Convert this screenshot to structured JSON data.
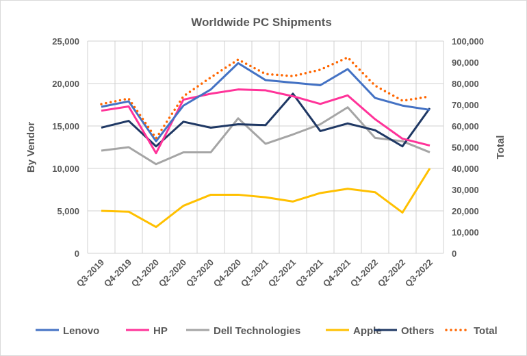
{
  "chart_data": {
    "type": "line",
    "title": "Worldwide PC Shipments",
    "ylabel": "By Vendor",
    "y2label": "Total",
    "xlabel": "",
    "categories": [
      "Q3-2019",
      "Q4-2019",
      "Q1-2020",
      "Q2-2020",
      "Q3-2020",
      "Q4-2020",
      "Q1-2021",
      "Q2-2021",
      "Q3-2021",
      "Q4-2021",
      "Q1-2022",
      "Q2-2022",
      "Q3-2022"
    ],
    "ylim": [
      0,
      25000
    ],
    "yticks": [
      "0",
      "5,000",
      "10,000",
      "15,000",
      "20,000",
      "25,000"
    ],
    "y2lim": [
      0,
      100000
    ],
    "y2ticks": [
      "0",
      "10,000",
      "20,000",
      "30,000",
      "40,000",
      "50,000",
      "60,000",
      "70,000",
      "80,000",
      "90,000",
      "100,000"
    ],
    "grid": true,
    "legend_position": "bottom",
    "series": [
      {
        "name": "Lenovo",
        "axis": "left",
        "color": "#4472C4",
        "style": "solid",
        "values": [
          17260,
          17900,
          13200,
          17400,
          19300,
          22400,
          20400,
          20100,
          19800,
          21700,
          18300,
          17400,
          16900
        ]
      },
      {
        "name": "HP",
        "axis": "left",
        "color": "#FF3399",
        "style": "solid",
        "values": [
          16800,
          17300,
          11800,
          18100,
          18800,
          19300,
          19200,
          18500,
          17600,
          18600,
          15800,
          13500,
          12700
        ]
      },
      {
        "name": "Dell Technologies",
        "axis": "left",
        "color": "#A5A5A5",
        "style": "solid",
        "values": [
          12100,
          12500,
          10500,
          11900,
          11900,
          15900,
          12900,
          14000,
          15200,
          17200,
          13600,
          13200,
          11900
        ]
      },
      {
        "name": "Apple",
        "axis": "left",
        "color": "#FFC000",
        "style": "solid",
        "values": [
          5000,
          4900,
          3100,
          5600,
          6900,
          6900,
          6600,
          6100,
          7100,
          7600,
          7200,
          4800,
          10000
        ]
      },
      {
        "name": "Others",
        "axis": "left",
        "color": "#1F3864",
        "style": "solid",
        "values": [
          14800,
          15600,
          12600,
          15500,
          14800,
          15200,
          15100,
          18800,
          14400,
          15300,
          14500,
          12600,
          17100
        ]
      },
      {
        "name": "Total",
        "axis": "right",
        "color": "#FF6600",
        "style": "dotted",
        "values": [
          70300,
          72900,
          54200,
          74000,
          82900,
          91300,
          84500,
          83500,
          86500,
          92300,
          79000,
          71900,
          73900
        ]
      }
    ]
  }
}
